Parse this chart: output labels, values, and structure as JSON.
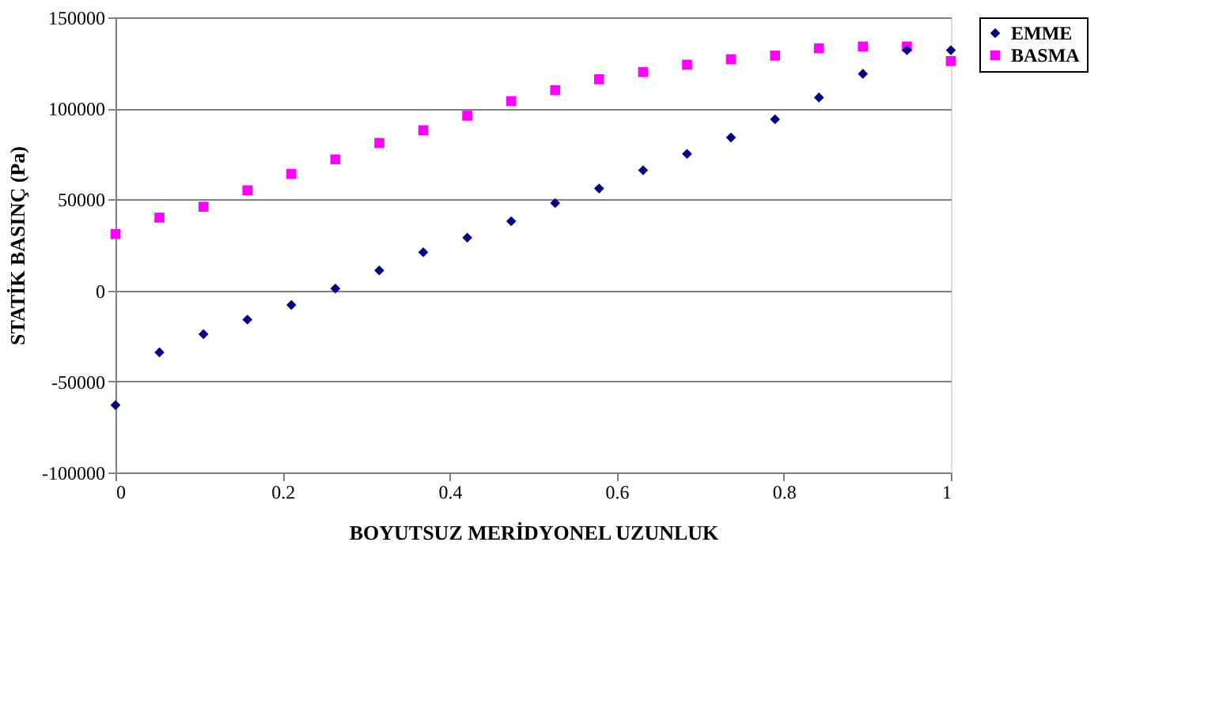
{
  "chart_data": {
    "type": "scatter",
    "xlabel": "BOYUTSUZ MERİDYONEL UZUNLUK",
    "ylabel": "STATİK BASINÇ (Pa)",
    "x": [
      0,
      0.0526,
      0.1053,
      0.1579,
      0.2105,
      0.2632,
      0.3158,
      0.3684,
      0.4211,
      0.4737,
      0.5263,
      0.5789,
      0.6316,
      0.6842,
      0.7368,
      0.7895,
      0.8421,
      0.8947,
      0.9474,
      1
    ],
    "series": [
      {
        "name": "EMME",
        "color": "#000080",
        "marker": "diamond",
        "values": [
          -63000,
          -34000,
          -24000,
          -16000,
          -8000,
          1000,
          11000,
          21000,
          29000,
          38000,
          48000,
          56000,
          66000,
          75000,
          84000,
          94000,
          106000,
          119000,
          132000,
          132000
        ]
      },
      {
        "name": "BASMA",
        "color": "#ff00ff",
        "marker": "square",
        "values": [
          31000,
          40000,
          46000,
          55000,
          64000,
          72000,
          81000,
          88000,
          96000,
          104000,
          110000,
          116000,
          120000,
          124000,
          127000,
          129000,
          133000,
          134000,
          134000,
          126000
        ]
      }
    ],
    "xlim": [
      0,
      1
    ],
    "xticks": [
      0,
      0.2,
      0.4,
      0.6,
      0.8,
      1
    ],
    "ylim": [
      -100000,
      150000
    ],
    "yticks": [
      -100000,
      -50000,
      0,
      50000,
      100000,
      150000
    ],
    "grid": "y",
    "legend": "right"
  }
}
